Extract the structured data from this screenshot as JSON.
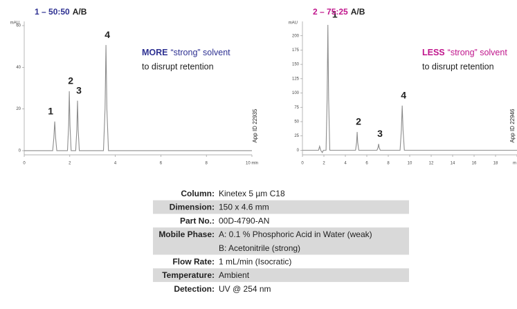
{
  "chart_data": [
    {
      "type": "line",
      "title": "1 – 50:50",
      "title_suffix": "A/B",
      "ylabel": "mAU",
      "color": "#8c8c8c",
      "accent": "#2e3192",
      "x": [
        0,
        1.25,
        1.3,
        1.34,
        1.38,
        1.43,
        1.9,
        1.95,
        1.98,
        2.01,
        2.06,
        2.26,
        2.31,
        2.34,
        2.37,
        2.42,
        3.48,
        3.55,
        3.59,
        3.63,
        3.7,
        10
      ],
      "values": [
        0,
        0,
        6,
        14,
        6,
        0,
        0,
        12,
        28.5,
        12,
        0,
        0,
        10,
        24,
        10,
        0,
        0,
        20,
        50.7,
        20,
        0,
        0
      ],
      "xlim": [
        0,
        10
      ],
      "ylim": [
        -2,
        62
      ],
      "xticks": [
        0,
        2,
        4,
        6,
        8,
        {
          "value": 10,
          "label": "10 min"
        }
      ],
      "yticks": [
        0,
        20,
        40,
        60
      ],
      "peak_labels": [
        "1",
        "2",
        "3",
        "4"
      ],
      "note_bold": "MORE",
      "note": "“strong” solvent",
      "note_line2": "to disrupt retention",
      "app_id": "App ID 22935"
    },
    {
      "type": "line",
      "title": "2 – 75:25",
      "title_suffix": "A/B",
      "ylabel": "mAU",
      "color": "#8c8c8c",
      "accent": "#c0168c",
      "x": [
        0,
        1.5,
        1.6,
        1.7,
        1.85,
        1.95,
        2.2,
        2.3,
        2.37,
        2.44,
        2.55,
        4.95,
        5.05,
        5.1,
        5.15,
        5.25,
        6.95,
        7.05,
        7.1,
        7.15,
        7.25,
        9.1,
        9.22,
        9.3,
        9.38,
        9.5,
        20
      ],
      "values": [
        0,
        0,
        7,
        0,
        -4,
        0,
        0,
        90,
        219,
        90,
        0,
        0,
        14,
        32,
        14,
        0,
        0,
        5,
        11,
        5,
        0,
        0,
        35,
        78,
        35,
        0,
        0
      ],
      "xlim": [
        0,
        20
      ],
      "ylim": [
        -8,
        225
      ],
      "xticks": [
        0,
        2,
        4,
        6,
        8,
        10,
        12,
        14,
        16,
        18,
        {
          "value": 20,
          "label": "m"
        }
      ],
      "yticks": [
        0,
        25,
        50,
        75,
        100,
        125,
        150,
        175,
        200
      ],
      "peak_labels": [
        "1",
        "2",
        "3",
        "4"
      ],
      "note_bold": "LESS",
      "note": "“strong” solvent",
      "note_line2": "to disrupt retention",
      "app_id": "App ID 22946"
    }
  ],
  "table": {
    "rows": [
      {
        "label": "Column:",
        "values": [
          "Kinetex 5 µm C18"
        ]
      },
      {
        "label": "Dimension:",
        "values": [
          "150 x 4.6 mm"
        ]
      },
      {
        "label": "Part No.:",
        "values": [
          "00D-4790-AN"
        ]
      },
      {
        "label": "Mobile Phase:",
        "values": [
          "A: 0.1 % Phosphoric Acid in Water (weak)",
          "B: Acetonitrile (strong)"
        ]
      },
      {
        "label": "Flow Rate:",
        "values": [
          "1 mL/min (Isocratic)"
        ]
      },
      {
        "label": "Temperature:",
        "values": [
          "Ambient"
        ]
      },
      {
        "label": "Detection:",
        "values": [
          "UV @ 254 nm"
        ]
      }
    ]
  }
}
